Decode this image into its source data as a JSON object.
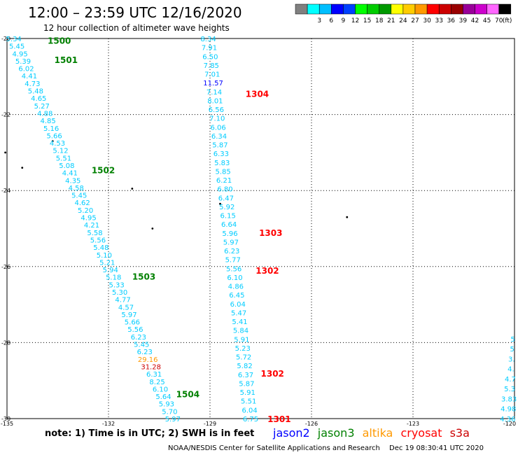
{
  "header": {
    "title": "12:00 – 23:59 UTC 12/16/2020",
    "subtitle": "12 hour collection of altimeter wave heights"
  },
  "color_scale": {
    "colors": [
      "#808080",
      "#00ffff",
      "#00bfff",
      "#0000ff",
      "#0040ff",
      "#00ff00",
      "#00cc00",
      "#009900",
      "#ffff00",
      "#ffcc00",
      "#ff9900",
      "#ff0000",
      "#cc0000",
      "#990000",
      "#990099",
      "#cc00cc",
      "#ff66ff",
      "#000000"
    ],
    "labels": [
      "3",
      "6",
      "9",
      "12",
      "15",
      "18",
      "21",
      "24",
      "27",
      "30",
      "33",
      "36",
      "39",
      "42",
      "45",
      "70"
    ],
    "unit": "(ft)"
  },
  "satellite_colors": {
    "jason2": "#0000ff",
    "jason3": "#008000",
    "altika": "#ff9900",
    "cryosat": "#ff0000",
    "s3a": "#cc0000",
    "track": "#00ccff"
  },
  "map": {
    "lon_ticks": [
      "-135",
      "-132",
      "-129",
      "-126",
      "-123",
      "-120"
    ],
    "lat_ticks": [
      "-20",
      "-22",
      "-24",
      "-26",
      "-28",
      "-30"
    ],
    "track_labels": [
      {
        "text": "1500",
        "lon": -133.8,
        "lat": -20.05,
        "color": "jason3"
      },
      {
        "text": "1501",
        "lon": -133.6,
        "lat": -20.55,
        "color": "jason3"
      },
      {
        "text": "1502",
        "lon": -132.5,
        "lat": -23.45,
        "color": "jason3"
      },
      {
        "text": "1503",
        "lon": -131.3,
        "lat": -26.25,
        "color": "jason3"
      },
      {
        "text": "1504",
        "lon": -130.0,
        "lat": -29.35,
        "color": "jason3"
      },
      {
        "text": "1304",
        "lon": -127.95,
        "lat": -21.45,
        "color": "cryosat"
      },
      {
        "text": "1303",
        "lon": -127.55,
        "lat": -25.1,
        "color": "cryosat"
      },
      {
        "text": "1302",
        "lon": -127.65,
        "lat": -26.1,
        "color": "cryosat"
      },
      {
        "text": "1302",
        "lon": -127.5,
        "lat": -28.8,
        "color": "cryosat"
      },
      {
        "text": "1301",
        "lon": -127.3,
        "lat": -30.0,
        "color": "cryosat"
      }
    ],
    "track_a": {
      "lon_start": -134.8,
      "lat_start": -20.0,
      "lon_end": -130.1,
      "lat_end": -30.0,
      "values": [
        "5.34",
        "5.45",
        "4.95",
        "5.39",
        "6.02",
        "4.41",
        "4.73",
        "5.48",
        "4.65",
        "5.27",
        "4.88",
        "4.85",
        "5.16",
        "5.66",
        "4.53",
        "5.12",
        "5.51",
        "5.08",
        "4.41",
        "4.35",
        "4.58",
        "5.45",
        "4.62",
        "5.20",
        "4.95",
        "4.21",
        "5.58",
        "5.56",
        "5.48",
        "5.10",
        "5.21",
        "5.94",
        "5.18",
        "5.33",
        "5.30",
        "4.77",
        "4.57",
        "5.97",
        "5.66",
        "5.56",
        "6.23",
        "5.45",
        "6.23",
        "29.16",
        "31.28",
        "6.31",
        "8.25",
        "6.10",
        "5.64",
        "5.93",
        "5.70",
        "5.97"
      ],
      "colored": {
        "6.23": "track",
        "29.16": "altika",
        "31.28": "s3a"
      }
    },
    "track_b": {
      "lon_start": -129.05,
      "lat_start": -20.0,
      "lon_end": -127.8,
      "lat_end": -30.0,
      "values": [
        "8.34",
        "7.91",
        "6.50",
        "7.85",
        "7.01",
        "11.57",
        "7.14",
        "8.01",
        "6.56",
        "7.10",
        "6.06",
        "6.34",
        "5.87",
        "6.33",
        "5.83",
        "5.85",
        "6.21",
        "6.80",
        "6.47",
        "5.92",
        "6.15",
        "6.64",
        "5.96",
        "5.97",
        "6.23",
        "5.77",
        "5.56",
        "6.10",
        "4.86",
        "6.45",
        "6.04",
        "5.47",
        "5.41",
        "5.84",
        "5.91",
        "5.23",
        "5.72",
        "5.82",
        "6.37",
        "5.87",
        "5.91",
        "5.51",
        "6.04",
        "6.75"
      ]
    },
    "track_c": {
      "lon_start": -120.05,
      "lat_start": -27.9,
      "lon_end": -120.2,
      "lat_end": -30.0,
      "values": [
        "5",
        "5",
        "3.",
        "4.",
        "4.7",
        "5.3",
        "3.83",
        "4.98",
        "4.36"
      ]
    },
    "islands": [
      {
        "lon": -135.05,
        "lat": -23.0
      },
      {
        "lon": -134.55,
        "lat": -23.4
      },
      {
        "lon": -133.65,
        "lat": -22.7
      },
      {
        "lon": -131.3,
        "lat": -23.95
      },
      {
        "lon": -130.7,
        "lat": -25.0
      },
      {
        "lon": -128.7,
        "lat": -24.35
      },
      {
        "lon": -124.95,
        "lat": -24.7
      }
    ]
  },
  "legend": {
    "note": "note: 1) Time is in UTC; 2) SWH is in feet",
    "sats": [
      "jason2",
      "jason3",
      "altika",
      "cryosat",
      "s3a"
    ]
  },
  "footer": {
    "credit": "NOAA/NESDIS Center for Satellite Applications and Research",
    "timestamp": "Dec 19 08:30:41 UTC 2020"
  }
}
